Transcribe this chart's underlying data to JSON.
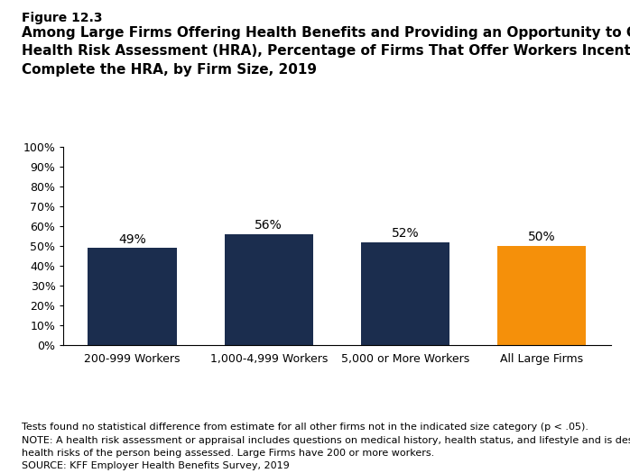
{
  "figure_label": "Figure 12.3",
  "title_lines": [
    "Among Large Firms Offering Health Benefits and Providing an Opportunity to Complete a",
    "Health Risk Assessment (HRA), Percentage of Firms That Offer Workers Incentives to",
    "Complete the HRA, by Firm Size, 2019"
  ],
  "categories": [
    "200-999 Workers",
    "1,000-4,999 Workers",
    "5,000 or More Workers",
    "All Large Firms"
  ],
  "values": [
    49,
    56,
    52,
    50
  ],
  "bar_colors": [
    "#1b2d4e",
    "#1b2d4e",
    "#1b2d4e",
    "#f5900a"
  ],
  "ylim": [
    0,
    100
  ],
  "yticks": [
    0,
    10,
    20,
    30,
    40,
    50,
    60,
    70,
    80,
    90,
    100
  ],
  "bar_label_fontsize": 10,
  "footnote_lines": [
    "Tests found no statistical difference from estimate for all other firms not in the indicated size category (p < .05).",
    "NOTE: A health risk assessment or appraisal includes questions on medical history, health status, and lifestyle and is designed to identify the",
    "health risks of the person being assessed. Large Firms have 200 or more workers.",
    "SOURCE: KFF Employer Health Benefits Survey, 2019"
  ],
  "background_color": "#ffffff",
  "bar_edge_color": "none",
  "axis_line_color": "#000000",
  "figure_label_fontsize": 10,
  "title_fontsize": 11,
  "tick_fontsize": 9,
  "xlabel_fontsize": 9,
  "footnote_fontsize": 8
}
